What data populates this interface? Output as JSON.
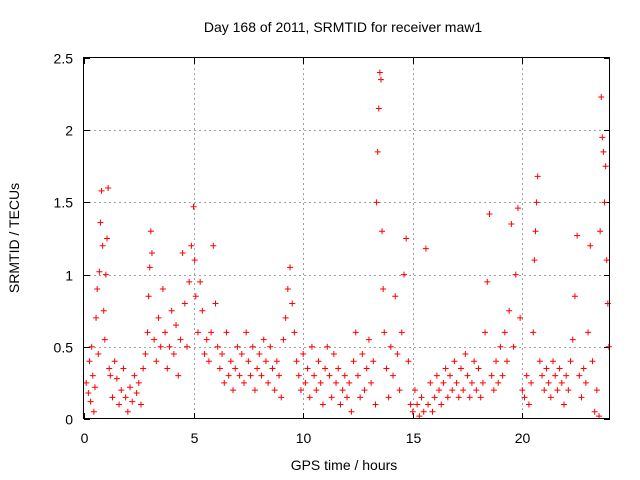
{
  "chart_data": {
    "type": "scatter",
    "title": "Day 168 of 2011, SRMTID for receiver maw1",
    "xlabel": "GPS time / hours",
    "ylabel": "SRMTID / TECUs",
    "xlim": [
      0,
      24
    ],
    "ylim": [
      0,
      2.5
    ],
    "xticks": [
      0,
      5,
      10,
      15,
      20
    ],
    "xtick_labels": [
      "0",
      "5",
      "10",
      "15",
      "20"
    ],
    "yticks": [
      0,
      0.5,
      1,
      1.5,
      2,
      2.5
    ],
    "ytick_labels": [
      "0",
      "0.5",
      "1",
      "1.5",
      "2",
      "2.5"
    ],
    "grid": true,
    "marker": "+",
    "marker_color": "#ff0000",
    "series": [
      {
        "name": "maw1",
        "points": [
          [
            0.1,
            0.25
          ],
          [
            0.2,
            0.18
          ],
          [
            0.25,
            0.4
          ],
          [
            0.3,
            0.12
          ],
          [
            0.35,
            0.5
          ],
          [
            0.4,
            0.3
          ],
          [
            0.45,
            0.05
          ],
          [
            0.5,
            0.22
          ],
          [
            0.55,
            0.7
          ],
          [
            0.6,
            0.9
          ],
          [
            0.65,
            0.45
          ],
          [
            0.7,
            1.02
          ],
          [
            0.75,
            1.36
          ],
          [
            0.8,
            1.58
          ],
          [
            0.85,
            1.2
          ],
          [
            0.9,
            0.75
          ],
          [
            0.95,
            0.55
          ],
          [
            1.0,
            1.0
          ],
          [
            1.05,
            1.25
          ],
          [
            1.1,
            1.6
          ],
          [
            1.15,
            0.35
          ],
          [
            1.2,
            0.3
          ],
          [
            1.3,
            0.15
          ],
          [
            1.4,
            0.4
          ],
          [
            1.5,
            0.28
          ],
          [
            1.6,
            0.1
          ],
          [
            1.7,
            0.2
          ],
          [
            1.8,
            0.35
          ],
          [
            1.9,
            0.15
          ],
          [
            2.0,
            0.05
          ],
          [
            2.1,
            0.22
          ],
          [
            2.2,
            0.12
          ],
          [
            2.3,
            0.3
          ],
          [
            2.4,
            0.18
          ],
          [
            2.5,
            0.25
          ],
          [
            2.6,
            0.1
          ],
          [
            2.7,
            0.35
          ],
          [
            2.8,
            0.45
          ],
          [
            2.9,
            0.6
          ],
          [
            2.95,
            0.85
          ],
          [
            3.0,
            1.05
          ],
          [
            3.05,
            1.3
          ],
          [
            3.1,
            1.15
          ],
          [
            3.2,
            0.55
          ],
          [
            3.3,
            0.4
          ],
          [
            3.4,
            0.7
          ],
          [
            3.5,
            0.5
          ],
          [
            3.6,
            0.9
          ],
          [
            3.7,
            0.6
          ],
          [
            3.8,
            0.35
          ],
          [
            3.9,
            0.5
          ],
          [
            4.0,
            0.75
          ],
          [
            4.1,
            0.45
          ],
          [
            4.2,
            0.65
          ],
          [
            4.3,
            0.3
          ],
          [
            4.4,
            0.55
          ],
          [
            4.5,
            1.15
          ],
          [
            4.6,
            0.8
          ],
          [
            4.7,
            0.5
          ],
          [
            4.8,
            0.95
          ],
          [
            4.9,
            1.2
          ],
          [
            5.0,
            1.47
          ],
          [
            5.05,
            1.1
          ],
          [
            5.1,
            0.85
          ],
          [
            5.2,
            0.6
          ],
          [
            5.3,
            0.95
          ],
          [
            5.4,
            0.75
          ],
          [
            5.5,
            0.45
          ],
          [
            5.6,
            0.55
          ],
          [
            5.7,
            0.4
          ],
          [
            5.8,
            0.6
          ],
          [
            5.9,
            1.2
          ],
          [
            6.0,
            0.8
          ],
          [
            6.1,
            0.5
          ],
          [
            6.2,
            0.35
          ],
          [
            6.3,
            0.45
          ],
          [
            6.4,
            0.25
          ],
          [
            6.5,
            0.6
          ],
          [
            6.6,
            0.3
          ],
          [
            6.7,
            0.4
          ],
          [
            6.8,
            0.2
          ],
          [
            6.9,
            0.35
          ],
          [
            7.0,
            0.5
          ],
          [
            7.1,
            0.3
          ],
          [
            7.2,
            0.45
          ],
          [
            7.3,
            0.25
          ],
          [
            7.4,
            0.6
          ],
          [
            7.5,
            0.4
          ],
          [
            7.6,
            0.3
          ],
          [
            7.7,
            0.5
          ],
          [
            7.8,
            0.2
          ],
          [
            7.9,
            0.35
          ],
          [
            8.0,
            0.45
          ],
          [
            8.1,
            0.3
          ],
          [
            8.2,
            0.55
          ],
          [
            8.3,
            0.4
          ],
          [
            8.4,
            0.25
          ],
          [
            8.5,
            0.5
          ],
          [
            8.6,
            0.35
          ],
          [
            8.7,
            0.2
          ],
          [
            8.8,
            0.4
          ],
          [
            8.9,
            0.3
          ],
          [
            9.0,
            0.15
          ],
          [
            9.1,
            0.55
          ],
          [
            9.2,
            0.7
          ],
          [
            9.3,
            0.9
          ],
          [
            9.4,
            1.05
          ],
          [
            9.5,
            0.8
          ],
          [
            9.6,
            0.6
          ],
          [
            9.7,
            0.4
          ],
          [
            9.8,
            0.3
          ],
          [
            9.9,
            0.2
          ],
          [
            10.0,
            0.45
          ],
          [
            10.1,
            0.25
          ],
          [
            10.2,
            0.35
          ],
          [
            10.3,
            0.15
          ],
          [
            10.4,
            0.5
          ],
          [
            10.5,
            0.3
          ],
          [
            10.6,
            0.2
          ],
          [
            10.7,
            0.4
          ],
          [
            10.8,
            0.25
          ],
          [
            10.9,
            0.1
          ],
          [
            11.0,
            0.35
          ],
          [
            11.1,
            0.5
          ],
          [
            11.2,
            0.3
          ],
          [
            11.3,
            0.15
          ],
          [
            11.4,
            0.45
          ],
          [
            11.5,
            0.25
          ],
          [
            11.6,
            0.35
          ],
          [
            11.7,
            0.1
          ],
          [
            11.8,
            0.2
          ],
          [
            11.9,
            0.3
          ],
          [
            12.0,
            0.15
          ],
          [
            12.1,
            0.25
          ],
          [
            12.2,
            0.05
          ],
          [
            12.3,
            0.4
          ],
          [
            12.4,
            0.6
          ],
          [
            12.5,
            0.3
          ],
          [
            12.6,
            0.15
          ],
          [
            12.7,
            0.45
          ],
          [
            12.8,
            0.2
          ],
          [
            12.9,
            0.35
          ],
          [
            13.0,
            0.55
          ],
          [
            13.1,
            0.25
          ],
          [
            13.2,
            0.4
          ],
          [
            13.3,
            0.1
          ],
          [
            13.35,
            1.5
          ],
          [
            13.4,
            1.85
          ],
          [
            13.45,
            2.15
          ],
          [
            13.5,
            2.4
          ],
          [
            13.55,
            2.35
          ],
          [
            13.6,
            1.3
          ],
          [
            13.65,
            0.9
          ],
          [
            13.7,
            0.6
          ],
          [
            13.8,
            0.35
          ],
          [
            13.9,
            0.15
          ],
          [
            14.0,
            0.5
          ],
          [
            14.1,
            0.3
          ],
          [
            14.2,
            0.85
          ],
          [
            14.3,
            0.45
          ],
          [
            14.4,
            0.2
          ],
          [
            14.5,
            0.6
          ],
          [
            14.6,
            1.0
          ],
          [
            14.7,
            1.25
          ],
          [
            14.8,
            0.4
          ],
          [
            14.9,
            0.1
          ],
          [
            15.0,
            0.05
          ],
          [
            15.1,
            0.2
          ],
          [
            15.2,
            0.1
          ],
          [
            15.3,
            0.02
          ],
          [
            15.4,
            0.15
          ],
          [
            15.5,
            0.05
          ],
          [
            15.6,
            1.18
          ],
          [
            15.7,
            0.1
          ],
          [
            15.8,
            0.25
          ],
          [
            15.9,
            0.05
          ],
          [
            16.0,
            0.15
          ],
          [
            16.1,
            0.3
          ],
          [
            16.2,
            0.2
          ],
          [
            16.3,
            0.1
          ],
          [
            16.4,
            0.25
          ],
          [
            16.5,
            0.35
          ],
          [
            16.6,
            0.15
          ],
          [
            16.7,
            0.3
          ],
          [
            16.8,
            0.2
          ],
          [
            16.9,
            0.4
          ],
          [
            17.0,
            0.25
          ],
          [
            17.1,
            0.15
          ],
          [
            17.2,
            0.35
          ],
          [
            17.3,
            0.2
          ],
          [
            17.4,
            0.45
          ],
          [
            17.5,
            0.3
          ],
          [
            17.6,
            0.15
          ],
          [
            17.7,
            0.25
          ],
          [
            17.8,
            0.4
          ],
          [
            17.9,
            0.2
          ],
          [
            18.0,
            0.35
          ],
          [
            18.1,
            0.15
          ],
          [
            18.2,
            0.25
          ],
          [
            18.3,
            0.6
          ],
          [
            18.4,
            0.95
          ],
          [
            18.5,
            1.42
          ],
          [
            18.6,
            0.3
          ],
          [
            18.7,
            0.2
          ],
          [
            18.8,
            0.4
          ],
          [
            18.9,
            0.25
          ],
          [
            19.0,
            0.5
          ],
          [
            19.1,
            0.3
          ],
          [
            19.2,
            0.6
          ],
          [
            19.3,
            0.4
          ],
          [
            19.4,
            0.75
          ],
          [
            19.5,
            1.35
          ],
          [
            19.6,
            0.5
          ],
          [
            19.7,
            1.0
          ],
          [
            19.8,
            1.46
          ],
          [
            19.9,
            0.7
          ],
          [
            20.0,
            0.2
          ],
          [
            20.1,
            0.15
          ],
          [
            20.2,
            0.3
          ],
          [
            20.3,
            0.1
          ],
          [
            20.4,
            0.25
          ],
          [
            20.5,
            0.6
          ],
          [
            20.55,
            1.1
          ],
          [
            20.6,
            1.3
          ],
          [
            20.65,
            1.5
          ],
          [
            20.7,
            1.68
          ],
          [
            20.8,
            0.4
          ],
          [
            20.9,
            0.3
          ],
          [
            21.0,
            0.2
          ],
          [
            21.1,
            0.35
          ],
          [
            21.2,
            0.25
          ],
          [
            21.3,
            0.15
          ],
          [
            21.4,
            0.4
          ],
          [
            21.5,
            0.3
          ],
          [
            21.6,
            0.2
          ],
          [
            21.7,
            0.35
          ],
          [
            21.8,
            0.25
          ],
          [
            21.9,
            0.1
          ],
          [
            22.0,
            0.3
          ],
          [
            22.1,
            0.2
          ],
          [
            22.2,
            0.4
          ],
          [
            22.3,
            0.55
          ],
          [
            22.4,
            0.85
          ],
          [
            22.5,
            1.27
          ],
          [
            22.6,
            0.3
          ],
          [
            22.7,
            0.15
          ],
          [
            22.8,
            0.35
          ],
          [
            22.9,
            0.25
          ],
          [
            23.0,
            0.6
          ],
          [
            23.1,
            1.2
          ],
          [
            23.2,
            0.4
          ],
          [
            23.3,
            0.05
          ],
          [
            23.4,
            0.2
          ],
          [
            23.5,
            0.02
          ],
          [
            23.55,
            1.3
          ],
          [
            23.6,
            2.23
          ],
          [
            23.65,
            1.95
          ],
          [
            23.7,
            1.85
          ],
          [
            23.75,
            1.5
          ],
          [
            23.8,
            1.75
          ],
          [
            23.85,
            1.1
          ],
          [
            23.9,
            0.8
          ],
          [
            23.95,
            0.5
          ]
        ]
      }
    ]
  }
}
